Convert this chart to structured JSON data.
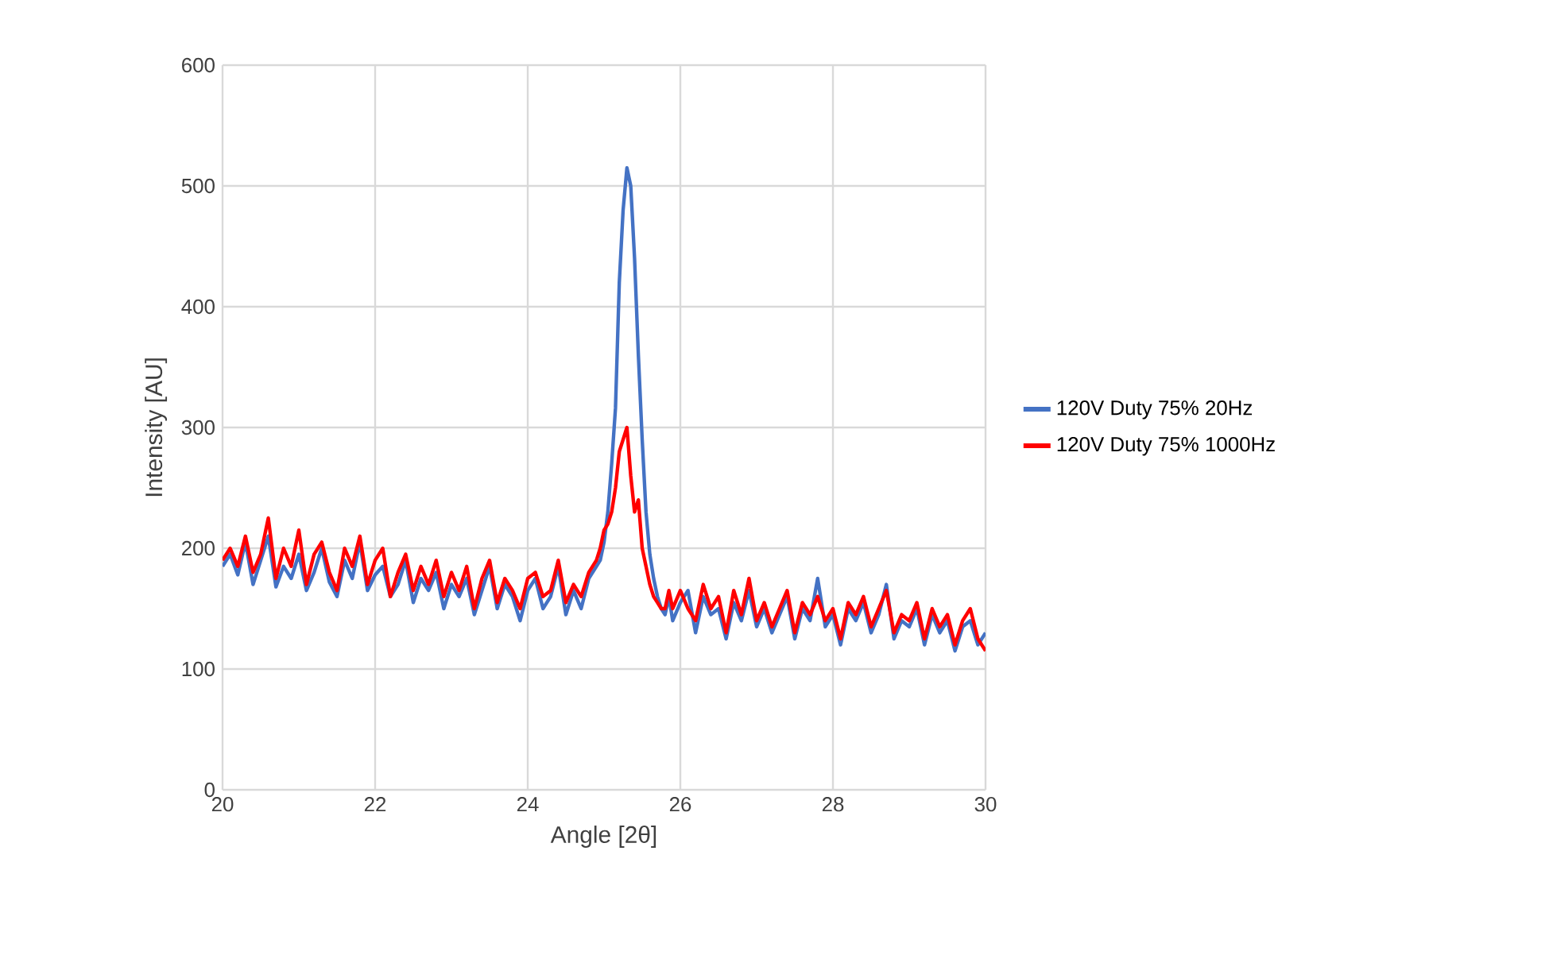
{
  "chart_data": {
    "type": "line",
    "xlabel": "Angle [2θ]",
    "ylabel": "Intensity [AU]",
    "x": [
      20.0,
      20.1,
      20.2,
      20.3,
      20.4,
      20.5,
      20.6,
      20.7,
      20.8,
      20.9,
      21.0,
      21.1,
      21.2,
      21.3,
      21.4,
      21.5,
      21.6,
      21.7,
      21.8,
      21.9,
      22.0,
      22.1,
      22.2,
      22.3,
      22.4,
      22.5,
      22.6,
      22.7,
      22.8,
      22.9,
      23.0,
      23.1,
      23.2,
      23.3,
      23.4,
      23.5,
      23.6,
      23.7,
      23.8,
      23.9,
      24.0,
      24.1,
      24.2,
      24.3,
      24.4,
      24.5,
      24.6,
      24.7,
      24.8,
      24.9,
      24.95,
      25.0,
      25.05,
      25.1,
      25.15,
      25.2,
      25.25,
      25.3,
      25.35,
      25.4,
      25.45,
      25.5,
      25.55,
      25.6,
      25.65,
      25.7,
      25.75,
      25.8,
      25.85,
      25.9,
      26.0,
      26.1,
      26.2,
      26.3,
      26.4,
      26.5,
      26.6,
      26.7,
      26.8,
      26.9,
      27.0,
      27.1,
      27.2,
      27.3,
      27.4,
      27.5,
      27.6,
      27.7,
      27.8,
      27.9,
      28.0,
      28.1,
      28.2,
      28.3,
      28.4,
      28.5,
      28.6,
      28.7,
      28.8,
      28.9,
      29.0,
      29.1,
      29.2,
      29.3,
      29.4,
      29.5,
      29.6,
      29.7,
      29.8,
      29.9,
      30.0
    ],
    "series": [
      {
        "name": "120V Duty 75% 20Hz",
        "color": "#4472c4",
        "values": [
          185,
          195,
          178,
          205,
          170,
          190,
          210,
          168,
          185,
          175,
          195,
          165,
          180,
          200,
          172,
          160,
          190,
          175,
          205,
          165,
          178,
          185,
          160,
          170,
          190,
          155,
          175,
          165,
          180,
          150,
          170,
          160,
          175,
          145,
          165,
          185,
          150,
          170,
          160,
          140,
          165,
          175,
          150,
          160,
          185,
          145,
          165,
          150,
          175,
          185,
          190,
          205,
          230,
          270,
          316,
          420,
          480,
          515,
          500,
          440,
          360,
          290,
          230,
          195,
          175,
          160,
          150,
          145,
          160,
          140,
          155,
          165,
          130,
          160,
          145,
          150,
          125,
          155,
          140,
          165,
          135,
          150,
          130,
          145,
          160,
          125,
          150,
          140,
          175,
          135,
          145,
          120,
          150,
          140,
          155,
          130,
          145,
          170,
          125,
          140,
          135,
          150,
          120,
          145,
          130,
          140,
          115,
          135,
          140,
          120,
          130
        ]
      },
      {
        "name": "120V Duty 75% 1000Hz",
        "color": "#ff0000",
        "values": [
          190,
          200,
          185,
          210,
          180,
          195,
          225,
          175,
          200,
          185,
          215,
          170,
          195,
          205,
          180,
          165,
          200,
          185,
          210,
          170,
          190,
          200,
          160,
          180,
          195,
          165,
          185,
          170,
          190,
          160,
          180,
          165,
          185,
          150,
          175,
          190,
          155,
          175,
          165,
          150,
          175,
          180,
          160,
          165,
          190,
          155,
          170,
          160,
          180,
          190,
          200,
          215,
          220,
          230,
          250,
          280,
          290,
          300,
          260,
          230,
          240,
          200,
          185,
          170,
          160,
          155,
          150,
          150,
          165,
          150,
          165,
          150,
          140,
          170,
          150,
          160,
          130,
          165,
          145,
          175,
          140,
          155,
          135,
          150,
          165,
          130,
          155,
          145,
          160,
          140,
          150,
          125,
          155,
          145,
          160,
          135,
          150,
          165,
          130,
          145,
          140,
          155,
          125,
          150,
          135,
          145,
          120,
          140,
          150,
          125,
          115
        ]
      }
    ],
    "xlim": [
      20,
      30
    ],
    "ylim": [
      0,
      600
    ],
    "xticks": [
      20,
      22,
      24,
      26,
      28,
      30
    ],
    "yticks": [
      0,
      100,
      200,
      300,
      400,
      500,
      600
    ],
    "grid": true,
    "legend": "right",
    "marker": "none",
    "line_style": "solid"
  }
}
